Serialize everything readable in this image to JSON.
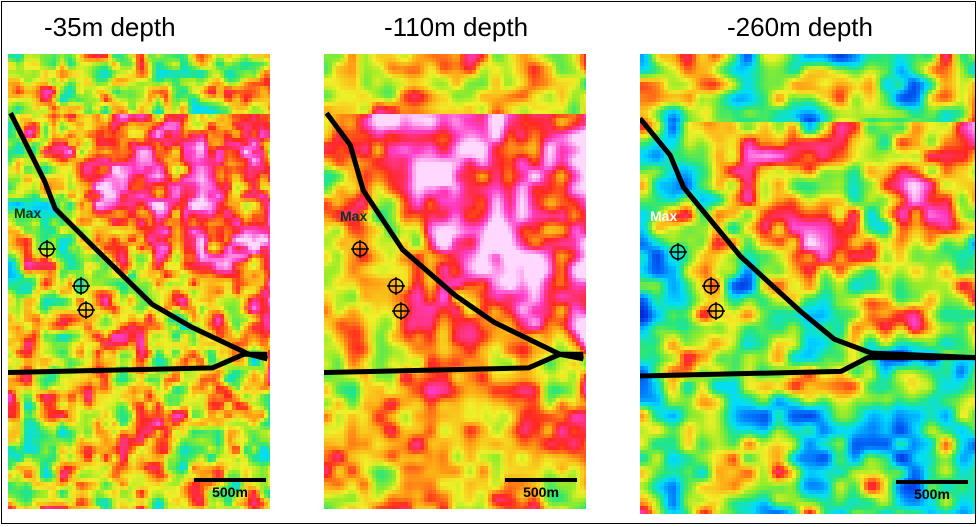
{
  "panels": [
    {
      "title": "-35m depth",
      "max_label": "Max",
      "scale_label": "500m",
      "palette": "warm-green"
    },
    {
      "title": "-110m depth",
      "max_label": "Max",
      "scale_label": "500m",
      "palette": "warm"
    },
    {
      "title": "-260m depth",
      "max_label": "Max",
      "scale_label": "500m",
      "palette": "cool"
    }
  ],
  "colors": {
    "fault_line": "#000000",
    "marker": "#000000",
    "max_label_panel1": "#0a3a0a",
    "max_label_panel2": "#0a3a0a",
    "max_label_panel3": "#ffffff"
  },
  "icons": {
    "marker": "crosshair-circle-icon"
  }
}
